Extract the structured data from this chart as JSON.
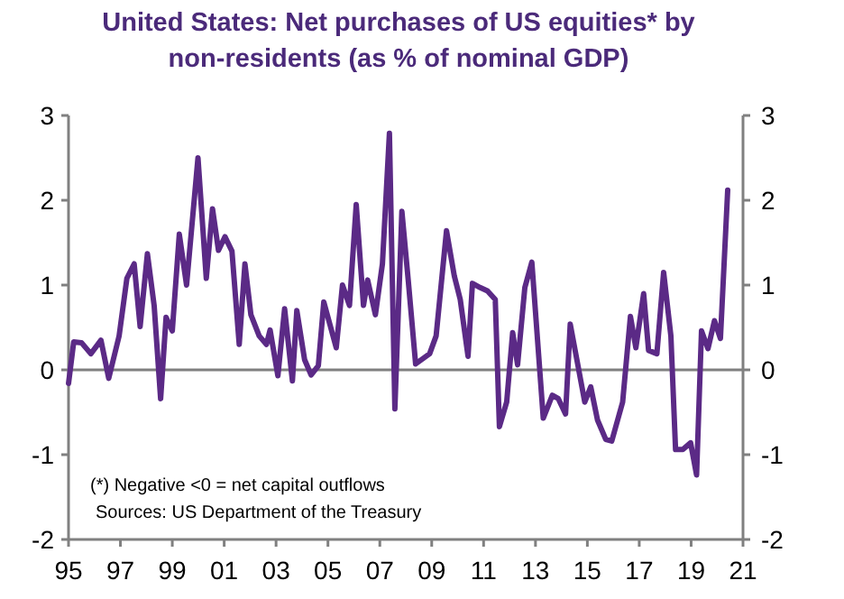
{
  "chart_data": {
    "type": "line",
    "title": "United States: Net purchases of US equities* by non-residents (as % of nominal GDP)",
    "annotations": [
      "(*) Negative <0 = net capital outflows",
      "Sources: US Department of the Treasury"
    ],
    "xlim": [
      1995,
      2021
    ],
    "xticks": [
      {
        "value": 1995,
        "label": "95"
      },
      {
        "value": 1997,
        "label": "97"
      },
      {
        "value": 1999,
        "label": "99"
      },
      {
        "value": 2001,
        "label": "01"
      },
      {
        "value": 2003,
        "label": "03"
      },
      {
        "value": 2005,
        "label": "05"
      },
      {
        "value": 2007,
        "label": "07"
      },
      {
        "value": 2009,
        "label": "09"
      },
      {
        "value": 2011,
        "label": "11"
      },
      {
        "value": 2013,
        "label": "13"
      },
      {
        "value": 2015,
        "label": "15"
      },
      {
        "value": 2017,
        "label": "17"
      },
      {
        "value": 2019,
        "label": "19"
      },
      {
        "value": 2021,
        "label": "21"
      }
    ],
    "ylim": [
      -2,
      3
    ],
    "yticks": [
      -2,
      -1,
      0,
      1,
      2,
      3
    ],
    "y2lim": [
      -2,
      3
    ],
    "y2ticks": [
      -2,
      -1,
      0,
      1,
      2,
      3
    ],
    "grid": false,
    "marker": "none",
    "line_style": "solid",
    "ref_lines": [
      {
        "axis": "y",
        "value": 0,
        "color": "#808080"
      }
    ],
    "series": [
      {
        "color": "#5b2a86",
        "x": [
          1995.0,
          1995.2,
          1995.5,
          1995.86,
          1996.25,
          1996.55,
          1996.95,
          1997.25,
          1997.53,
          1997.76,
          1998.04,
          1998.3,
          1998.55,
          1998.76,
          1999.0,
          1999.27,
          1999.55,
          1999.99,
          2000.31,
          2000.55,
          2000.78,
          2001.03,
          2001.3,
          2001.58,
          2001.8,
          2002.03,
          2002.35,
          2002.63,
          2002.77,
          2003.07,
          2003.33,
          2003.63,
          2003.8,
          2004.1,
          2004.35,
          2004.63,
          2004.84,
          2005.32,
          2005.56,
          2005.83,
          2006.09,
          2006.37,
          2006.53,
          2006.83,
          2007.1,
          2007.37,
          2007.58,
          2007.85,
          2008.1,
          2008.38,
          2008.92,
          2009.17,
          2009.57,
          2009.87,
          2010.1,
          2010.4,
          2010.57,
          2010.87,
          2011.15,
          2011.45,
          2011.61,
          2011.89,
          2012.12,
          2012.31,
          2012.59,
          2012.86,
          2013.3,
          2013.65,
          2013.88,
          2014.16,
          2014.34,
          2014.9,
          2015.13,
          2015.39,
          2015.71,
          2015.94,
          2016.36,
          2016.66,
          2016.87,
          2017.17,
          2017.36,
          2017.68,
          2017.94,
          2018.22,
          2018.4,
          2018.68,
          2018.98,
          2019.21,
          2019.4,
          2019.65,
          2019.9,
          2020.13,
          2020.41
        ],
        "values": [
          -0.16,
          0.33,
          0.32,
          0.19,
          0.35,
          -0.1,
          0.4,
          1.08,
          1.25,
          0.51,
          1.37,
          0.76,
          -0.34,
          0.62,
          0.46,
          1.6,
          1.0,
          2.5,
          1.08,
          1.9,
          1.41,
          1.57,
          1.4,
          0.3,
          1.25,
          0.65,
          0.4,
          0.3,
          0.47,
          -0.07,
          0.72,
          -0.13,
          0.7,
          0.12,
          -0.06,
          0.05,
          0.8,
          0.26,
          1.0,
          0.76,
          1.95,
          0.76,
          1.06,
          0.65,
          1.25,
          2.79,
          -0.46,
          1.87,
          1.04,
          0.07,
          0.19,
          0.4,
          1.64,
          1.11,
          0.83,
          0.16,
          1.02,
          0.97,
          0.93,
          0.83,
          -0.67,
          -0.38,
          0.44,
          0.06,
          0.97,
          1.27,
          -0.57,
          -0.3,
          -0.34,
          -0.52,
          0.54,
          -0.38,
          -0.2,
          -0.59,
          -0.82,
          -0.84,
          -0.38,
          0.63,
          0.26,
          0.9,
          0.23,
          0.19,
          1.15,
          0.4,
          -0.94,
          -0.94,
          -0.86,
          -1.24,
          0.46,
          0.25,
          0.58,
          0.37,
          2.12
        ]
      }
    ]
  }
}
